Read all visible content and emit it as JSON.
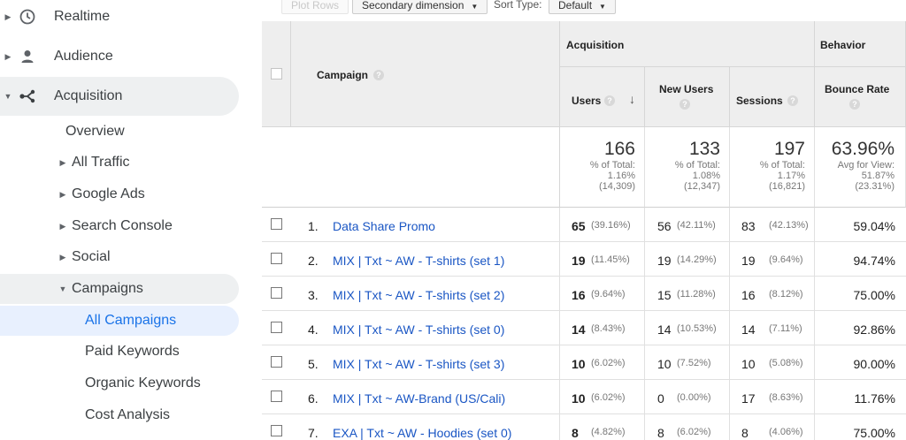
{
  "sidebar": {
    "realtime": "Realtime",
    "audience": "Audience",
    "acquisition": "Acquisition",
    "overview": "Overview",
    "all_traffic": "All Traffic",
    "google_ads": "Google Ads",
    "search_console": "Search Console",
    "social": "Social",
    "campaigns": "Campaigns",
    "all_campaigns": "All Campaigns",
    "paid_keywords": "Paid Keywords",
    "organic_keywords": "Organic Keywords",
    "cost_analysis": "Cost Analysis"
  },
  "toolbar": {
    "plot_rows": "Plot Rows",
    "secondary_dimension": "Secondary dimension",
    "sort_type_label": "Sort Type:",
    "sort_type_value": "Default"
  },
  "table": {
    "group_acquisition": "Acquisition",
    "group_behavior": "Behavior",
    "col_campaign": "Campaign",
    "col_users": "Users",
    "col_new_users": "New Users",
    "col_sessions": "Sessions",
    "col_bounce_rate": "Bounce Rate",
    "totals": {
      "users": {
        "value": "166",
        "l1": "% of Total:",
        "l2": "1.16%",
        "l3": "(14,309)"
      },
      "new_users": {
        "value": "133",
        "l1": "% of Total:",
        "l2": "1.08%",
        "l3": "(12,347)"
      },
      "sessions": {
        "value": "197",
        "l1": "% of Total:",
        "l2": "1.17%",
        "l3": "(16,821)"
      },
      "bounce_rate": {
        "value": "63.96%",
        "l1": "Avg for View:",
        "l2": "51.87%",
        "l3": "(23.31%)"
      }
    },
    "rows": [
      {
        "num": "1.",
        "campaign": "Data Share Promo",
        "users": "65",
        "users_pct": "(39.16%)",
        "new_users": "56",
        "new_users_pct": "(42.11%)",
        "sessions": "83",
        "sessions_pct": "(42.13%)",
        "bounce": "59.04%"
      },
      {
        "num": "2.",
        "campaign": "MIX | Txt ~ AW - T-shirts (set 1)",
        "users": "19",
        "users_pct": "(11.45%)",
        "new_users": "19",
        "new_users_pct": "(14.29%)",
        "sessions": "19",
        "sessions_pct": "(9.64%)",
        "bounce": "94.74%"
      },
      {
        "num": "3.",
        "campaign": "MIX | Txt ~ AW - T-shirts (set 2)",
        "users": "16",
        "users_pct": "(9.64%)",
        "new_users": "15",
        "new_users_pct": "(11.28%)",
        "sessions": "16",
        "sessions_pct": "(8.12%)",
        "bounce": "75.00%"
      },
      {
        "num": "4.",
        "campaign": "MIX | Txt ~ AW - T-shirts (set 0)",
        "users": "14",
        "users_pct": "(8.43%)",
        "new_users": "14",
        "new_users_pct": "(10.53%)",
        "sessions": "14",
        "sessions_pct": "(7.11%)",
        "bounce": "92.86%"
      },
      {
        "num": "5.",
        "campaign": "MIX | Txt ~ AW - T-shirts (set 3)",
        "users": "10",
        "users_pct": "(6.02%)",
        "new_users": "10",
        "new_users_pct": "(7.52%)",
        "sessions": "10",
        "sessions_pct": "(5.08%)",
        "bounce": "90.00%"
      },
      {
        "num": "6.",
        "campaign": "MIX | Txt ~ AW-Brand (US/Cali)",
        "users": "10",
        "users_pct": "(6.02%)",
        "new_users": "0",
        "new_users_pct": "(0.00%)",
        "sessions": "17",
        "sessions_pct": "(8.63%)",
        "bounce": "11.76%"
      },
      {
        "num": "7.",
        "campaign": "EXA | Txt ~ AW - Hoodies (set 0)",
        "users": "8",
        "users_pct": "(4.82%)",
        "new_users": "8",
        "new_users_pct": "(6.02%)",
        "sessions": "8",
        "sessions_pct": "(4.06%)",
        "bounce": "75.00%"
      }
    ]
  },
  "colors": {
    "link": "#1a56c4",
    "selected_text": "#1a73e8",
    "selected_bg": "#e8f0fe",
    "header_bg": "#eeeeee"
  }
}
